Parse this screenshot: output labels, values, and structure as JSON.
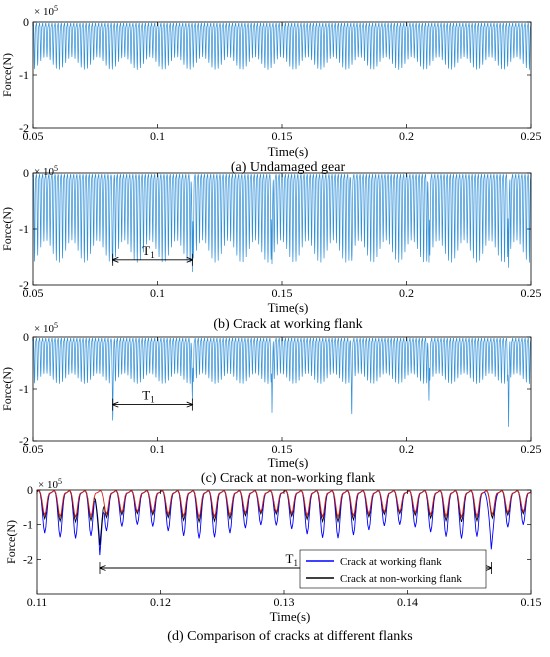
{
  "figure": {
    "series_colors": {
      "force": "#2f8fd8",
      "working": "#0000ff",
      "non_working": "#000000",
      "red": "#e0241b"
    },
    "multiplier_base": "× 10",
    "multiplier_exp": "5"
  },
  "chart_data": [
    {
      "id": "a",
      "type": "line",
      "title": "(a) Undamaged gear",
      "xlabel": "Time(s)",
      "ylabel": "Force(N)",
      "xlim": [
        0.05,
        0.25
      ],
      "ylim": [
        -2,
        0
      ],
      "xticks": [
        "0.05",
        "0.1",
        "0.15",
        "0.2",
        "0.25"
      ],
      "yticks": [
        "0",
        "-1",
        "-2"
      ],
      "series": [
        {
          "color": "#2f8fd8",
          "mesh_period_s": 0.00125,
          "base_peak": -0.78,
          "envelope_period_s": 0.0105,
          "envelope_amplitude": 0.12,
          "upper_level": -0.05,
          "spikes": []
        }
      ]
    },
    {
      "id": "b",
      "type": "line",
      "title": "(b) Crack at working flank",
      "xlabel": "Time(s)",
      "ylabel": "Force(N)",
      "xlim": [
        0.05,
        0.25
      ],
      "ylim": [
        -2,
        0
      ],
      "xticks": [
        "0.05",
        "0.1",
        "0.15",
        "0.2",
        "0.25"
      ],
      "yticks": [
        "0",
        "-1",
        "-2"
      ],
      "annotation": {
        "label": "T",
        "subscript": "1",
        "x_start": 0.082,
        "x_end": 0.114,
        "y": -1.55
      },
      "series": [
        {
          "color": "#2f8fd8",
          "mesh_period_s": 0.00125,
          "base_peak": -1.4,
          "envelope_period_s": 0.0105,
          "envelope_amplitude": 0.2,
          "upper_level": -0.05,
          "spikes": [
            {
              "x": 0.082,
              "y": -1.82
            },
            {
              "x": 0.114,
              "y": -1.88
            },
            {
              "x": 0.146,
              "y": -1.73
            },
            {
              "x": 0.178,
              "y": -1.78
            },
            {
              "x": 0.209,
              "y": -1.7
            },
            {
              "x": 0.241,
              "y": -1.8
            }
          ]
        }
      ]
    },
    {
      "id": "c",
      "type": "line",
      "title": "(c) Crack at non-working flank",
      "xlabel": "Time(s)",
      "ylabel": "Force(N)",
      "xlim": [
        0.05,
        0.25
      ],
      "ylim": [
        -2,
        0
      ],
      "xticks": [
        "0.05",
        "0.1",
        "0.15",
        "0.2",
        "0.25"
      ],
      "yticks": [
        "0",
        "-1",
        "-2"
      ],
      "annotation": {
        "label": "T",
        "subscript": "1",
        "x_start": 0.082,
        "x_end": 0.114,
        "y": -1.3
      },
      "series": [
        {
          "color": "#2f8fd8",
          "mesh_period_s": 0.00125,
          "base_peak": -0.8,
          "envelope_period_s": 0.0105,
          "envelope_amplitude": 0.1,
          "upper_level": -0.05,
          "spikes": [
            {
              "x": 0.082,
              "y": -1.82
            },
            {
              "x": 0.114,
              "y": -1.3
            },
            {
              "x": 0.146,
              "y": -1.55
            },
            {
              "x": 0.178,
              "y": -1.68
            },
            {
              "x": 0.209,
              "y": -1.3
            },
            {
              "x": 0.241,
              "y": -1.84
            }
          ]
        }
      ]
    },
    {
      "id": "d",
      "type": "line",
      "title": "(d) Comparison of cracks at different flanks",
      "xlabel": "Time(s)",
      "ylabel": "Force(N)",
      "xlim": [
        0.11,
        0.15
      ],
      "ylim": [
        -3,
        0
      ],
      "xticks": [
        "0.11",
        "0.12",
        "0.13",
        "0.14",
        "0.15"
      ],
      "yticks": [
        "0",
        "-1",
        "-2"
      ],
      "legend_position": "lower-right",
      "annotation": {
        "label": "T",
        "subscript": "1",
        "x_start": 0.1151,
        "x_end": 0.1468,
        "y": -2.25
      },
      "series": [
        {
          "name": "Crack at working flank",
          "color": "#0000ff",
          "mesh_period_s": 0.00125,
          "base_peak": -1.2,
          "envelope_period_s": 0.0105,
          "envelope_amplitude": 0.2,
          "upper_level": -0.05,
          "spikes": [
            {
              "x": 0.1151,
              "y": -1.95
            },
            {
              "x": 0.1468,
              "y": -1.8
            }
          ]
        },
        {
          "name": "Crack at non-working flank",
          "color": "#000000",
          "mesh_period_s": 0.00125,
          "base_peak": -0.8,
          "envelope_period_s": 0.0105,
          "envelope_amplitude": 0.12,
          "upper_level": -0.05,
          "spikes": [
            {
              "x": 0.1151,
              "y": -1.65
            }
          ]
        },
        {
          "color": "#e0241b",
          "mesh_period_s": 0.00125,
          "base_peak": -0.7,
          "envelope_period_s": 0.0105,
          "envelope_amplitude": 0.08,
          "upper_level": -0.05,
          "spikes": []
        }
      ]
    }
  ]
}
